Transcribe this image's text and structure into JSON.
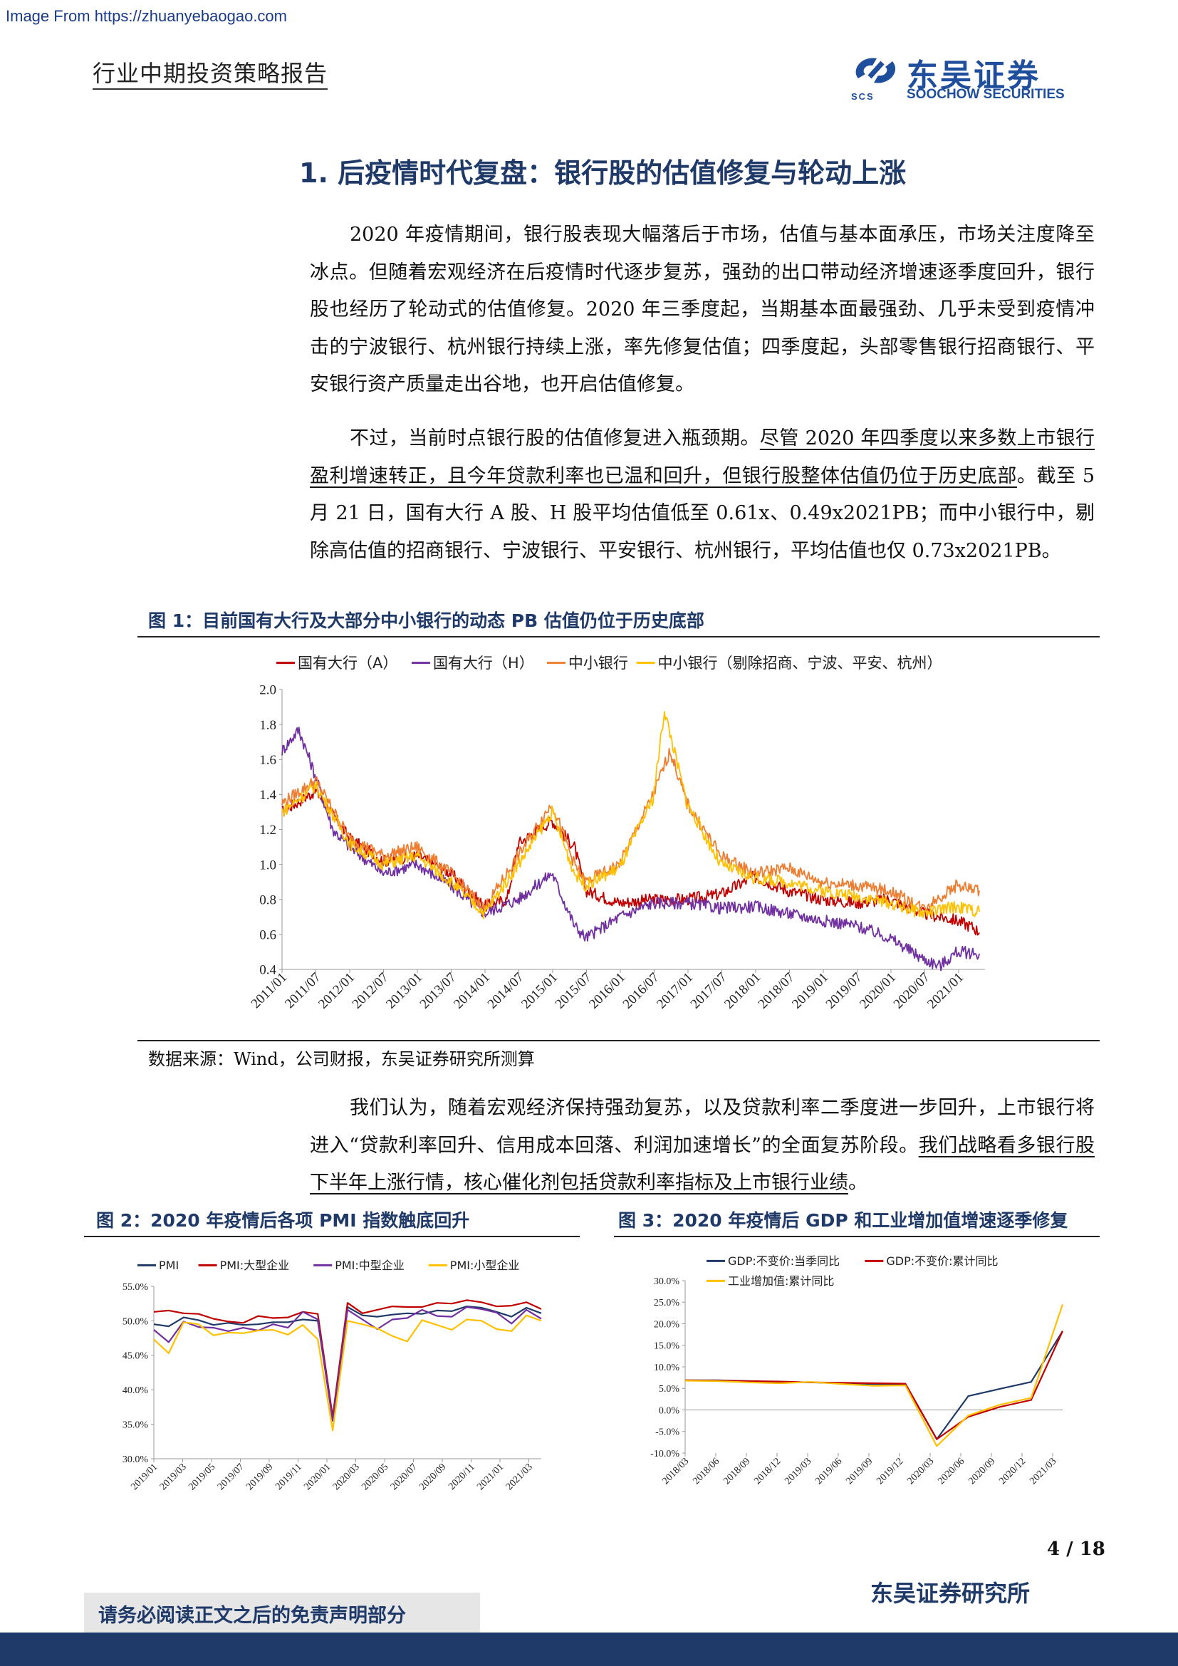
{
  "watermark": "Image From https://zhuanyebaogao.com",
  "header": {
    "title": "行业中期投资策略报告",
    "logo_cn": "东吴证券",
    "logo_en": "SOOCHOW SECURITIES",
    "logo_abbr": "SCS"
  },
  "section_title": "1. 后疫情时代复盘：银行股的估值修复与轮动上涨",
  "paragraphs": {
    "p1": "2020 年疫情期间，银行股表现大幅落后于市场，估值与基本面承压，市场关注度降至冰点。但随着宏观经济在后疫情时代逐步复苏，强劲的出口带动经济增速逐季度回升，银行股也经历了轮动式的估值修复。2020 年三季度起，当期基本面最强劲、几乎未受到疫情冲击的宁波银行、杭州银行持续上涨，率先修复估值；四季度起，头部零售银行招商银行、平安银行资产质量走出谷地，也开启估值修复。",
    "p2_a": "不过，当前时点银行股的估值修复进入瓶颈期。",
    "p2_b": "尽管 2020 年四季度以来多数上市银行盈利增速转正，且今年贷款利率也已温和回升，但银行股整体估值仍位于历史底部",
    "p2_c": "。截至 5 月 21 日，国有大行 A 股、H 股平均估值低至 0.61x、0.49x2021PB；而中小银行中，剔除高估值的招商银行、宁波银行、平安银行、杭州银行，平均估值也仅 0.73x2021PB。",
    "p3_a": "我们认为，随着宏观经济保持强劲复苏，以及贷款利率二季度进一步回升，上市银行将进入“贷款利率回升、信用成本回落、利润加速增长”的全面复苏阶段。",
    "p3_b": "我们战略看多银行股下半年上涨行情，核心催化剂包括贷款利率指标及上市银行业绩",
    "p3_c": "。"
  },
  "figures": {
    "fig1_title": "图 1：目前国有大行及大部分中小银行的动态 PB 估值仍位于历史底部",
    "fig1_source": "数据来源：Wind，公司财报，东吴证券研究所测算",
    "fig2_title": "图 2：2020 年疫情后各项 PMI 指数触底回升",
    "fig3_title": "图 3：2020 年疫情后 GDP 和工业增加值增速逐季修复"
  },
  "chart_data": [
    {
      "type": "line",
      "ylim": [
        0.4,
        2.0
      ],
      "yticks": [
        "2.0",
        "1.8",
        "1.6",
        "1.4",
        "1.2",
        "1.0",
        "0.8",
        "0.6",
        "0.4"
      ],
      "xticks": [
        "2011/01",
        "2011/07",
        "2012/01",
        "2012/07",
        "2013/01",
        "2013/07",
        "2014/01",
        "2014/07",
        "2015/01",
        "2015/07",
        "2016/01",
        "2016/07",
        "2017/01",
        "2017/07",
        "2018/01",
        "2018/07",
        "2019/01",
        "2019/07",
        "2020/01",
        "2020/07",
        "2021/01"
      ],
      "series": [
        {
          "name": "国有大行（A）",
          "color": "#c00000",
          "x": [
            0,
            6,
            12,
            18,
            24,
            30,
            36,
            40,
            42,
            48,
            52,
            54,
            60,
            66,
            72,
            78,
            84,
            90,
            96,
            102,
            108,
            114,
            120,
            123,
            124
          ],
          "values": [
            1.3,
            1.42,
            1.15,
            1.02,
            1.05,
            0.95,
            0.76,
            0.8,
            1.12,
            1.25,
            1.1,
            0.85,
            0.78,
            0.8,
            0.8,
            0.83,
            0.93,
            0.85,
            0.8,
            0.78,
            0.8,
            0.72,
            0.68,
            0.64,
            0.61
          ]
        },
        {
          "name": "国有大行（H）",
          "color": "#7030a0",
          "x": [
            0,
            3,
            6,
            9,
            12,
            18,
            24,
            30,
            36,
            42,
            48,
            52,
            54,
            60,
            66,
            72,
            78,
            84,
            90,
            96,
            102,
            108,
            114,
            117,
            120,
            124
          ],
          "values": [
            1.65,
            1.77,
            1.5,
            1.2,
            1.1,
            0.95,
            1.0,
            0.88,
            0.72,
            0.8,
            0.95,
            0.65,
            0.58,
            0.7,
            0.78,
            0.78,
            0.75,
            0.76,
            0.72,
            0.68,
            0.65,
            0.58,
            0.46,
            0.42,
            0.5,
            0.49
          ]
        },
        {
          "name": "中小银行",
          "color": "#ed7d31",
          "x": [
            0,
            6,
            12,
            18,
            24,
            30,
            36,
            42,
            48,
            52,
            54,
            60,
            66,
            69,
            72,
            78,
            84,
            90,
            96,
            102,
            108,
            114,
            120,
            124
          ],
          "values": [
            1.35,
            1.48,
            1.15,
            1.05,
            1.1,
            0.95,
            0.75,
            1.05,
            1.35,
            1.0,
            0.9,
            1.0,
            1.4,
            1.65,
            1.35,
            1.05,
            0.95,
            0.98,
            0.9,
            0.88,
            0.85,
            0.75,
            0.88,
            0.85
          ]
        },
        {
          "name": "中小银行（剔除招商、宁波、平安、杭州）",
          "color": "#ffc000",
          "x": [
            0,
            6,
            12,
            18,
            24,
            30,
            36,
            42,
            48,
            52,
            54,
            60,
            66,
            68,
            72,
            78,
            84,
            90,
            96,
            102,
            108,
            114,
            120,
            124
          ],
          "values": [
            1.3,
            1.45,
            1.12,
            1.0,
            1.05,
            0.9,
            0.72,
            1.0,
            1.3,
            0.95,
            0.88,
            0.98,
            1.38,
            1.88,
            1.35,
            1.0,
            0.92,
            0.9,
            0.85,
            0.82,
            0.78,
            0.72,
            0.76,
            0.73
          ]
        }
      ]
    },
    {
      "type": "line",
      "ylim": [
        30.0,
        55.0
      ],
      "yticks": [
        "55.0%",
        "50.0%",
        "45.0%",
        "40.0%",
        "35.0%",
        "30.0%"
      ],
      "xticks": [
        "2019/01",
        "2019/03",
        "2019/05",
        "2019/07",
        "2019/09",
        "2019/11",
        "2020/01",
        "2020/03",
        "2020/05",
        "2020/07",
        "2020/09",
        "2020/11",
        "2021/01",
        "2021/03"
      ],
      "series": [
        {
          "name": "PMI",
          "color": "#1f3a68",
          "values": [
            49.5,
            49.2,
            50.5,
            50.1,
            49.4,
            49.7,
            49.4,
            49.5,
            49.8,
            49.8,
            50.2,
            50.0,
            35.7,
            52.0,
            50.8,
            50.6,
            50.9,
            51.1,
            51.0,
            51.5,
            51.4,
            52.1,
            51.9,
            51.3,
            50.6,
            51.9,
            51.1
          ]
        },
        {
          "name": "PMI:大型企业",
          "color": "#c00000",
          "values": [
            51.3,
            51.5,
            51.1,
            51.0,
            50.3,
            49.9,
            49.7,
            50.7,
            50.4,
            50.5,
            51.3,
            51.0,
            36.1,
            52.6,
            51.1,
            51.6,
            52.1,
            52.0,
            52.0,
            52.6,
            52.5,
            53.0,
            52.7,
            52.1,
            52.2,
            52.7,
            51.7
          ]
        },
        {
          "name": "PMI:中型企业",
          "color": "#7030a0",
          "values": [
            48.7,
            46.9,
            49.9,
            49.1,
            49.0,
            48.5,
            49.0,
            48.6,
            49.5,
            49.0,
            51.3,
            50.2,
            35.5,
            51.6,
            50.2,
            48.8,
            50.2,
            50.4,
            51.6,
            50.7,
            50.6,
            52.0,
            51.7,
            51.2,
            49.6,
            51.6,
            50.3
          ]
        },
        {
          "name": "PMI:小型企业",
          "color": "#ffc000",
          "values": [
            47.3,
            45.3,
            49.8,
            49.5,
            47.9,
            48.3,
            48.2,
            48.6,
            48.7,
            48.0,
            49.4,
            47.3,
            34.1,
            50.0,
            49.5,
            48.9,
            47.8,
            47.0,
            50.1,
            49.4,
            48.7,
            50.2,
            50.0,
            48.8,
            48.5,
            50.8,
            50.0
          ]
        }
      ]
    },
    {
      "type": "line",
      "ylim": [
        -10.0,
        30.0
      ],
      "yticks": [
        "30.0%",
        "25.0%",
        "20.0%",
        "15.0%",
        "10.0%",
        "5.0%",
        "0.0%",
        "-5.0%",
        "-10.0%"
      ],
      "xticks": [
        "2018/03",
        "2018/06",
        "2018/09",
        "2018/12",
        "2019/03",
        "2019/06",
        "2019/09",
        "2019/12",
        "2020/03",
        "2020/06",
        "2020/09",
        "2020/12",
        "2021/03"
      ],
      "series": [
        {
          "name": "GDP:不变价:当季同比",
          "color": "#1f3a68",
          "values": [
            6.9,
            6.9,
            6.7,
            6.5,
            6.4,
            6.2,
            6.0,
            6.0,
            -6.8,
            3.2,
            4.9,
            6.5,
            18.3
          ]
        },
        {
          "name": "GDP:不变价:累计同比",
          "color": "#c00000",
          "values": [
            6.9,
            6.8,
            6.7,
            6.6,
            6.4,
            6.3,
            6.2,
            6.1,
            -6.8,
            -1.6,
            0.7,
            2.3,
            18.3
          ]
        },
        {
          "name": "工业增加值:累计同比",
          "color": "#ffc000",
          "values": [
            6.8,
            6.7,
            6.4,
            6.2,
            6.5,
            6.0,
            5.6,
            5.7,
            -8.4,
            -1.3,
            1.2,
            2.8,
            24.5
          ]
        }
      ]
    }
  ],
  "footer": {
    "page": "4 / 18",
    "institute": "东吴证券研究所",
    "disclaimer": "请务必阅读正文之后的免责声明部分"
  }
}
